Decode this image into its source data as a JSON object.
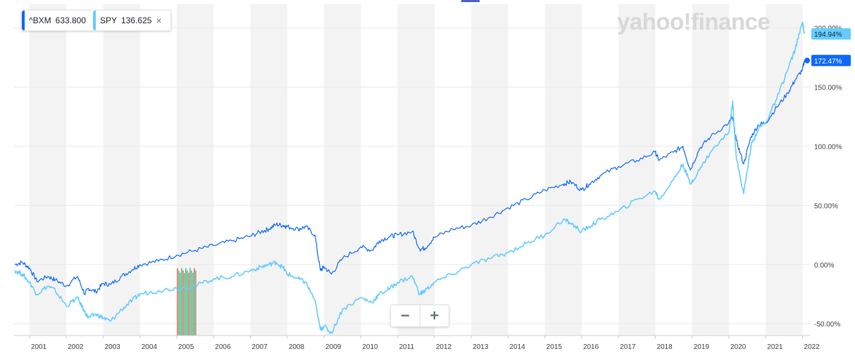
{
  "branding": {
    "watermark": "yahoo!finance"
  },
  "legend": {
    "items": [
      {
        "symbol": "^BXM",
        "value": "633.800",
        "color": "#0f69ff"
      },
      {
        "symbol": "SPY",
        "value": "136.625",
        "color": "#66ccff"
      }
    ],
    "close_icon": "×"
  },
  "zoom": {
    "minus": "−",
    "plus": "+"
  },
  "chart_data": {
    "type": "line",
    "title": "",
    "xlabel": "",
    "ylabel": "",
    "x_tick_labels": [
      "2001",
      "2002",
      "2003",
      "2004",
      "2005",
      "2006",
      "2007",
      "2008",
      "2009",
      "2010",
      "2011",
      "2012",
      "2013",
      "2014",
      "2015",
      "2016",
      "2017",
      "2018",
      "2019",
      "2020",
      "2021",
      "2022"
    ],
    "y_tick_labels": [
      "-50.00%",
      "0.00%",
      "50.00%",
      "100.00%",
      "150.00%",
      "200.00%"
    ],
    "y_ticks": [
      -50,
      0,
      50,
      100,
      150,
      200
    ],
    "xlim": [
      2000.58,
      2022.2
    ],
    "ylim": [
      -60,
      220
    ],
    "series": [
      {
        "name": "^BXM",
        "color": "#0f69ff",
        "end_label": "172.47%",
        "end_value": 172.47,
        "x": [
          2000.6,
          2000.8,
          2001.0,
          2001.2,
          2001.5,
          2001.7,
          2002.0,
          2002.3,
          2002.5,
          2002.6,
          2002.8,
          2003.0,
          2003.2,
          2003.5,
          2003.8,
          2004.0,
          2004.5,
          2005.0,
          2005.5,
          2006.0,
          2006.5,
          2007.0,
          2007.3,
          2007.5,
          2007.7,
          2007.9,
          2008.0,
          2008.3,
          2008.5,
          2008.75,
          2008.9,
          2009.0,
          2009.2,
          2009.5,
          2010.0,
          2010.3,
          2010.5,
          2010.8,
          2011.0,
          2011.4,
          2011.6,
          2011.75,
          2012.0,
          2012.5,
          2013.0,
          2013.5,
          2014.0,
          2014.5,
          2015.0,
          2015.5,
          2015.7,
          2016.0,
          2016.2,
          2016.5,
          2017.0,
          2017.5,
          2018.0,
          2018.1,
          2018.5,
          2018.75,
          2018.95,
          2019.2,
          2019.5,
          2020.0,
          2020.1,
          2020.2,
          2020.4,
          2020.6,
          2020.8,
          2021.0,
          2021.3,
          2021.6,
          2021.8,
          2022.0,
          2022.05
        ],
        "y": [
          0,
          2,
          -3,
          -14,
          -10,
          -13,
          -18,
          -10,
          -25,
          -20,
          -23,
          -16,
          -17,
          -10,
          -4,
          0,
          3,
          8,
          12,
          16,
          20,
          24,
          28,
          30,
          34,
          33,
          32,
          30,
          32,
          25,
          -5,
          -2,
          -8,
          5,
          15,
          12,
          20,
          24,
          25,
          28,
          13,
          14,
          23,
          30,
          33,
          40,
          48,
          55,
          63,
          68,
          70,
          63,
          68,
          75,
          83,
          88,
          95,
          88,
          95,
          100,
          80,
          98,
          108,
          120,
          124,
          105,
          85,
          108,
          118,
          120,
          133,
          145,
          156,
          165,
          172.47
        ]
      },
      {
        "name": "SPY",
        "color": "#66ccff",
        "end_label": "194.94%",
        "end_value": 194.94,
        "x": [
          2000.6,
          2000.8,
          2001.0,
          2001.2,
          2001.5,
          2001.7,
          2002.0,
          2002.3,
          2002.5,
          2002.6,
          2002.8,
          2003.0,
          2003.2,
          2003.5,
          2003.8,
          2004.0,
          2004.5,
          2005.0,
          2005.5,
          2006.0,
          2006.5,
          2007.0,
          2007.3,
          2007.5,
          2007.7,
          2007.9,
          2008.0,
          2008.3,
          2008.5,
          2008.75,
          2008.9,
          2009.0,
          2009.2,
          2009.5,
          2010.0,
          2010.3,
          2010.5,
          2010.8,
          2011.0,
          2011.4,
          2011.6,
          2011.75,
          2012.0,
          2012.5,
          2013.0,
          2013.5,
          2014.0,
          2014.5,
          2015.0,
          2015.5,
          2015.7,
          2016.0,
          2016.2,
          2016.5,
          2017.0,
          2017.5,
          2018.0,
          2018.1,
          2018.5,
          2018.75,
          2018.95,
          2019.2,
          2019.5,
          2020.0,
          2020.1,
          2020.2,
          2020.4,
          2020.6,
          2020.8,
          2021.0,
          2021.3,
          2021.6,
          2021.8,
          2022.0,
          2022.05
        ],
        "y": [
          -5,
          -8,
          -15,
          -25,
          -18,
          -22,
          -35,
          -28,
          -40,
          -45,
          -42,
          -45,
          -48,
          -38,
          -30,
          -25,
          -22,
          -20,
          -18,
          -12,
          -10,
          -5,
          -2,
          0,
          2,
          -3,
          -8,
          -12,
          -15,
          -30,
          -55,
          -52,
          -58,
          -38,
          -28,
          -32,
          -25,
          -20,
          -15,
          -10,
          -25,
          -22,
          -15,
          -8,
          0,
          5,
          10,
          18,
          25,
          38,
          35,
          28,
          32,
          38,
          45,
          55,
          62,
          55,
          72,
          85,
          68,
          80,
          95,
          112,
          138,
          90,
          60,
          100,
          115,
          120,
          140,
          165,
          182,
          205,
          194.94
        ]
      }
    ],
    "overlays": {
      "volume_bars_around": "2005"
    }
  }
}
